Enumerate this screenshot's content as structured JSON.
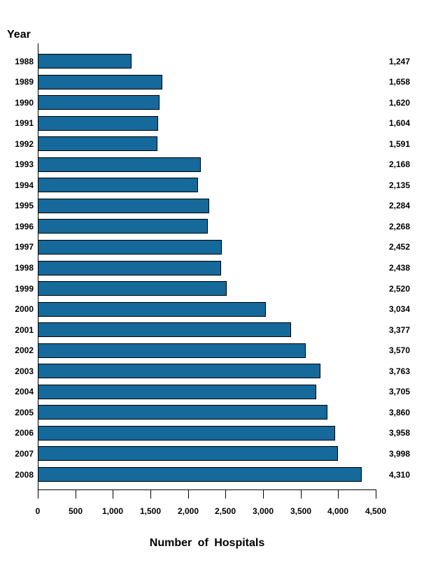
{
  "chart_data": {
    "type": "bar",
    "orientation": "horizontal",
    "ylabel": "Year",
    "xlabel": "Number of Hospitals",
    "categories": [
      "1988",
      "1989",
      "1990",
      "1991",
      "1992",
      "1993",
      "1994",
      "1995",
      "1996",
      "1997",
      "1998",
      "1999",
      "2000",
      "2001",
      "2002",
      "2003",
      "2004",
      "2005",
      "2006",
      "2007",
      "2008"
    ],
    "values": [
      1247,
      1658,
      1620,
      1604,
      1591,
      2168,
      2135,
      2284,
      2268,
      2452,
      2438,
      2520,
      3034,
      3377,
      3570,
      3763,
      3705,
      3860,
      3958,
      3998,
      4310
    ],
    "value_labels": [
      "1,247",
      "1,658",
      "1,620",
      "1,604",
      "1,591",
      "2,168",
      "2,135",
      "2,284",
      "2,268",
      "2,452",
      "2,438",
      "2,520",
      "3,034",
      "3,377",
      "3,570",
      "3,763",
      "3,705",
      "3,860",
      "3,958",
      "3,998",
      "4,310"
    ],
    "x_ticks": [
      {
        "value": 0,
        "label": "0"
      },
      {
        "value": 500,
        "label": "500"
      },
      {
        "value": 1000,
        "label": "1,000"
      },
      {
        "value": 1500,
        "label": "1,500"
      },
      {
        "value": 2000,
        "label": "2,000"
      },
      {
        "value": 2500,
        "label": "2,500"
      },
      {
        "value": 3000,
        "label": "3,000"
      },
      {
        "value": 3500,
        "label": "3,500"
      },
      {
        "value": 4000,
        "label": "4,000"
      },
      {
        "value": 4500,
        "label": "4,500"
      }
    ],
    "xlim": [
      0,
      4500
    ],
    "grid": false,
    "legend": "none",
    "bar_color": "#15699B",
    "bar_border_color": "#000000"
  }
}
